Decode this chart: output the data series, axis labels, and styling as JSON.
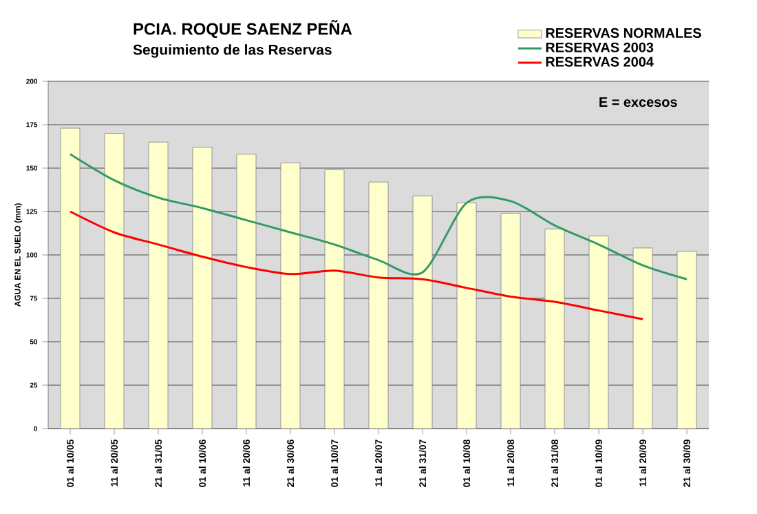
{
  "chart_data": {
    "type": "bar",
    "title": "PCIA. ROQUE SAENZ PEÑA",
    "subtitle": "Seguimiento de las Reservas",
    "ylabel": "AGUA EN EL SUELO (mm)",
    "categories": [
      "01 al 10/05",
      "11 al 20/05",
      "21 al 31/05",
      "01 al 10/06",
      "11 al 20/06",
      "21 al 30/06",
      "01 al 10/07",
      "11 al 20/07",
      "21 al 31/07",
      "01 al 10/08",
      "11 al 20/08",
      "21 al 31/08",
      "01 al 10/09",
      "11 al 20/09",
      "21 al 30/09"
    ],
    "series": [
      {
        "name": "RESERVAS NORMALES",
        "color": "#ffffcc",
        "values": [
          173,
          170,
          165,
          162,
          158,
          153,
          149,
          142,
          134,
          130,
          124,
          115,
          111,
          104,
          102
        ]
      },
      {
        "name": "RESERVAS 2003",
        "type": "line",
        "color": "#339966",
        "values": [
          158,
          143,
          133,
          127,
          120,
          113,
          106,
          97,
          90,
          130,
          131,
          117,
          106,
          94,
          86
        ]
      },
      {
        "name": "RESERVAS 2004",
        "type": "line",
        "color": "#ff0000",
        "values": [
          125,
          113,
          106,
          99,
          93,
          89,
          91,
          87,
          86,
          81,
          76,
          73,
          68,
          63,
          null
        ]
      }
    ],
    "ylim": [
      0,
      200
    ],
    "yticks": [
      0,
      25,
      50,
      75,
      100,
      125,
      150,
      175,
      200
    ],
    "grid": "y",
    "legend": "top right",
    "annotations": [
      "E = excesos"
    ]
  }
}
